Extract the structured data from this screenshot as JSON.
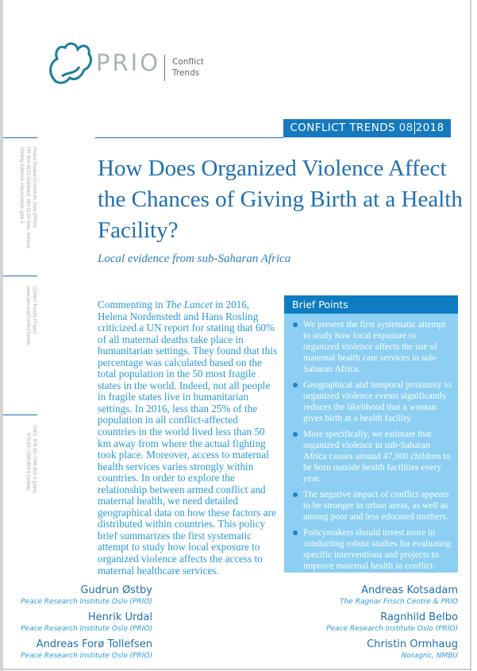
{
  "logo": {
    "name": "PRIO",
    "subtitle_line1": "Conflict",
    "subtitle_line2": "Trends"
  },
  "sidebar": {
    "address": [
      "Peace Research Institute Oslo (PRIO)",
      "PO Box 9229 Grønland, NO-0134 Oslo, Norway",
      "Visiting Address: Hausmanns gate 3"
    ],
    "project": [
      "Conflict Trends Project",
      "www.prio.org/ConflictTrends"
    ],
    "isbn": [
      "ISBN: 978-82-7288-892-2 (print)",
      "978-82-7288-893-9 (online)"
    ]
  },
  "banner": {
    "series": "CONFLICT TRENDS",
    "issue": "08",
    "year": "2018"
  },
  "title": "How Does Organized Violence Affect the Chances of Giving Birth at a Health Facility?",
  "subtitle": "Local evidence from sub-Saharan Africa",
  "body": {
    "pre": "Commenting in ",
    "journal": "The Lancet",
    "post": " in 2016, Helena Nordenstedt and Hans Rosling criticized a UN report for stating that 60% of all maternal deaths take place in humanitarian settings. They found that this percentage was calculated based on the total population in the 50 most fragile states in the world. Indeed, not all people in fragile states live in humanitarian settings. In 2016, less than 25% of the population in all conflict-affected countries in the world lived less than 50 km away from where the actual fighting took place. Moreover, access to maternal health services varies strongly within countries. In order to explore the relationship between armed conflict and maternal health, we need detailed geographical data on how these factors are distributed within countries. This policy brief summarizes the first systematic attempt to study how local exposure to organized violence affects the access to maternal healthcare services."
  },
  "brief": {
    "heading": "Brief Points",
    "points": [
      "We present the first systematic attempt to study how local exposure to organized violence affects the use of maternal health care services in sub-Saharan Africa.",
      "Geographical and temporal proximity to organized violence events significantly reduces the likelihood that a woman gives birth at a health facility.",
      "More specifically, we estimate that organized violence in sub-Saharan Africa causes around 47,000 children to be born outside health facilities every year.",
      "The negative impact of conflict appears to be stronger in urban areas, as well as among poor and less educated mothers.",
      "Policymakers should invest more in conducting robust studies for evaluating specific interventions and projects to improve maternal health in conflict-affected societies."
    ]
  },
  "authors": [
    {
      "name": "Gudrun Østby",
      "affiliation": "Peace Research Institute Oslo (PRIO)"
    },
    {
      "name": "Henrik Urdal",
      "affiliation": "Peace Research Institute Oslo (PRIO)"
    },
    {
      "name": "Andreas Forø Tollefsen",
      "affiliation": "Peace Research Institute Oslo (PRIO)"
    },
    {
      "name": "Andreas Kotsadam",
      "affiliation": "The Ragnar Frisch Centre & PRIO"
    },
    {
      "name": "Ragnhild Belbo",
      "affiliation": "Peace Research Institute Oslo (PRIO)"
    },
    {
      "name": "Christin Ormhaug",
      "affiliation": "Noragric, NMBU"
    }
  ],
  "colors": {
    "brand_blue": "#1579c0",
    "text_blue": "#2a9ad6",
    "brief_bg": "#8ccff2",
    "logo_teal": "#1a7f9a"
  }
}
